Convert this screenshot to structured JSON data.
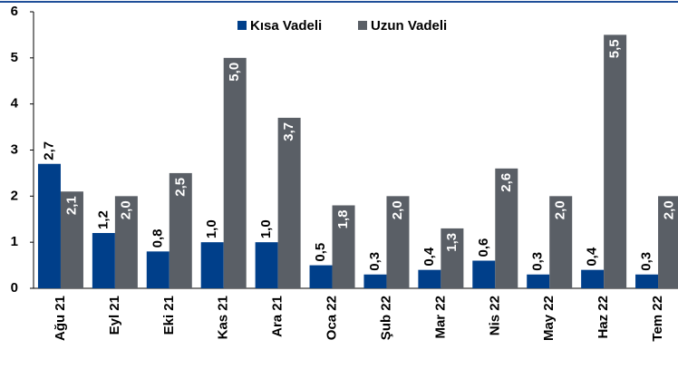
{
  "chart_data": {
    "type": "bar",
    "categories": [
      "Ağu 21",
      "Eyl 21",
      "Eki 21",
      "Kas 21",
      "Ara 21",
      "Oca 22",
      "Şub 22",
      "Mar 22",
      "Nis 22",
      "May 22",
      "Haz 22",
      "Tem 22"
    ],
    "series": [
      {
        "name": "Kısa Vadeli",
        "color": "#003f8a",
        "values": [
          2.7,
          1.2,
          0.8,
          1.0,
          1.0,
          0.5,
          0.3,
          0.4,
          0.6,
          0.3,
          0.4,
          0.3
        ],
        "value_labels": [
          "2,7",
          "1,2",
          "0,8",
          "1,0",
          "1,0",
          "0,5",
          "0,3",
          "0,4",
          "0,6",
          "0,3",
          "0,4",
          "0,3"
        ]
      },
      {
        "name": "Uzun Vadeli",
        "color": "#5a5f66",
        "values": [
          2.1,
          2.0,
          2.5,
          5.0,
          3.7,
          1.8,
          2.0,
          1.3,
          2.6,
          2.0,
          5.5,
          2.0
        ],
        "value_labels": [
          "2,1",
          "2,0",
          "2,5",
          "5,0",
          "3,7",
          "1,8",
          "2,0",
          "1,3",
          "2,6",
          "2,0",
          "5,5",
          "2,0"
        ]
      }
    ],
    "ylim": [
      0,
      6
    ],
    "yticks": [
      0,
      1,
      2,
      3,
      4,
      5,
      6
    ],
    "legend": "top"
  }
}
